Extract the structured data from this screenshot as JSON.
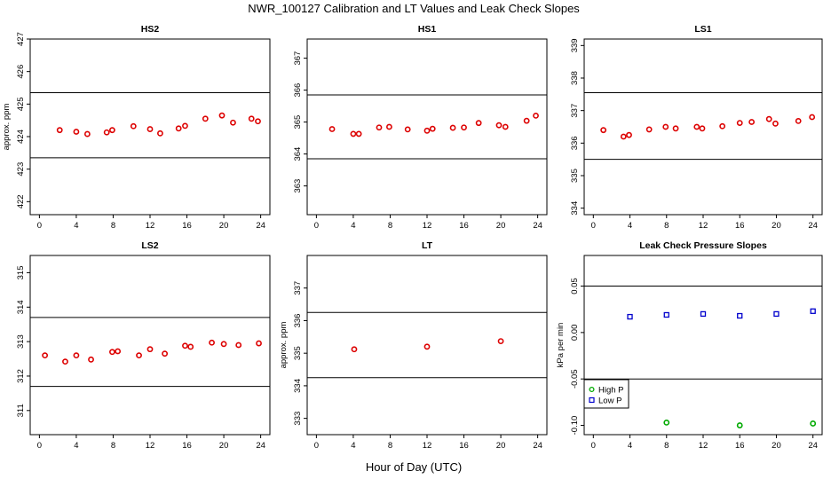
{
  "figure": {
    "title": "NWR_100127  Calibration and LT Values and Leak Check Slopes",
    "xlabel": "Hour of Day (UTC)"
  },
  "chart_data": [
    {
      "type": "scatter",
      "title": "HS2",
      "ylabel": "approx. ppm",
      "xlim": [
        -1,
        25
      ],
      "ylim": [
        421.6,
        427
      ],
      "xticks": [
        0,
        4,
        8,
        12,
        16,
        20,
        24
      ],
      "yticks": [
        422,
        423,
        424,
        425,
        426,
        427
      ],
      "hlines": [
        425.35,
        423.35
      ],
      "series": [
        {
          "color": "#dd0000",
          "marker": "circle",
          "x": [
            2.2,
            4.0,
            5.2,
            7.3,
            7.9,
            10.2,
            12.0,
            13.1,
            15.1,
            15.8,
            18.0,
            19.8,
            21.0,
            23.0,
            23.7
          ],
          "y": [
            424.2,
            424.15,
            424.08,
            424.13,
            424.2,
            424.32,
            424.23,
            424.1,
            424.25,
            424.33,
            424.55,
            424.65,
            424.43,
            424.55,
            424.47
          ]
        }
      ]
    },
    {
      "type": "scatter",
      "title": "HS1",
      "ylabel": "",
      "xlim": [
        -1,
        25
      ],
      "ylim": [
        362.1,
        367.6
      ],
      "xticks": [
        0,
        4,
        8,
        12,
        16,
        20,
        24
      ],
      "yticks": [
        363,
        364,
        365,
        366,
        367
      ],
      "hlines": [
        365.85,
        363.85
      ],
      "series": [
        {
          "color": "#dd0000",
          "marker": "circle",
          "x": [
            1.7,
            4.0,
            4.6,
            6.8,
            7.9,
            9.9,
            12.0,
            12.6,
            14.8,
            16.0,
            17.6,
            19.8,
            20.5,
            22.8,
            23.8
          ],
          "y": [
            364.78,
            364.63,
            364.63,
            364.83,
            364.85,
            364.77,
            364.73,
            364.79,
            364.82,
            364.83,
            364.97,
            364.9,
            364.85,
            365.04,
            365.2
          ]
        }
      ]
    },
    {
      "type": "scatter",
      "title": "LS1",
      "ylabel": "",
      "xlim": [
        -1,
        25
      ],
      "ylim": [
        333.8,
        339.2
      ],
      "xticks": [
        0,
        4,
        8,
        12,
        16,
        20,
        24
      ],
      "yticks": [
        334,
        335,
        336,
        337,
        338,
        339
      ],
      "hlines": [
        337.55,
        335.5
      ],
      "series": [
        {
          "color": "#dd0000",
          "marker": "circle",
          "x": [
            1.1,
            3.3,
            3.9,
            6.1,
            7.9,
            9.0,
            11.3,
            11.9,
            14.1,
            16.0,
            17.3,
            19.2,
            19.9,
            22.4,
            23.9
          ],
          "y": [
            336.4,
            336.2,
            336.25,
            336.42,
            336.5,
            336.45,
            336.5,
            336.45,
            336.52,
            336.62,
            336.65,
            336.74,
            336.6,
            336.68,
            336.8
          ]
        }
      ]
    },
    {
      "type": "scatter",
      "title": "LS2",
      "ylabel": "",
      "xlim": [
        -1,
        25
      ],
      "ylim": [
        310.3,
        315.5
      ],
      "xticks": [
        0,
        4,
        8,
        12,
        16,
        20,
        24
      ],
      "yticks": [
        311,
        312,
        313,
        314,
        315
      ],
      "hlines": [
        313.7,
        311.7
      ],
      "series": [
        {
          "color": "#dd0000",
          "marker": "circle",
          "x": [
            0.6,
            2.8,
            4.0,
            5.6,
            7.9,
            8.5,
            10.8,
            12.0,
            13.6,
            15.8,
            16.4,
            18.7,
            20.0,
            21.6,
            23.8
          ],
          "y": [
            312.6,
            312.42,
            312.6,
            312.48,
            312.7,
            312.72,
            312.6,
            312.78,
            312.65,
            312.88,
            312.85,
            312.97,
            312.93,
            312.9,
            312.95
          ]
        }
      ]
    },
    {
      "type": "scatter",
      "title": "LT",
      "ylabel": "approx. ppm",
      "xlim": [
        -1,
        25
      ],
      "ylim": [
        332.5,
        338
      ],
      "xticks": [
        0,
        4,
        8,
        12,
        16,
        20,
        24
      ],
      "yticks": [
        333,
        334,
        335,
        336,
        337
      ],
      "hlines": [
        336.25,
        334.25
      ],
      "series": [
        {
          "color": "#dd0000",
          "marker": "circle",
          "x": [
            4.1,
            12.0,
            20.0
          ],
          "y": [
            335.12,
            335.2,
            335.37
          ]
        }
      ]
    },
    {
      "type": "scatter",
      "title": "Leak Check Pressure Slopes",
      "ylabel": "kPa per min",
      "xlim": [
        -1,
        25
      ],
      "ylim": [
        -0.11,
        0.083
      ],
      "xticks": [
        0,
        4,
        8,
        12,
        16,
        20,
        24
      ],
      "yticks": [
        -0.1,
        -0.05,
        0.0,
        0.05
      ],
      "ytick_labels": [
        "-0.10",
        "-0.05",
        "0.00",
        "0.05"
      ],
      "hlines": [
        0.05,
        -0.05
      ],
      "legend": {
        "placement": "lower-left",
        "entries": [
          "High P",
          "Low P"
        ]
      },
      "series": [
        {
          "name": "High P",
          "color": "#00aa00",
          "marker": "circle",
          "x": [
            8,
            16,
            24
          ],
          "y": [
            -0.097,
            -0.1,
            -0.098
          ]
        },
        {
          "name": "Low P",
          "color": "#0000cc",
          "marker": "square",
          "x": [
            4,
            8,
            12,
            16,
            20,
            24
          ],
          "y": [
            0.017,
            0.019,
            0.02,
            0.018,
            0.02,
            0.023
          ]
        }
      ]
    }
  ]
}
